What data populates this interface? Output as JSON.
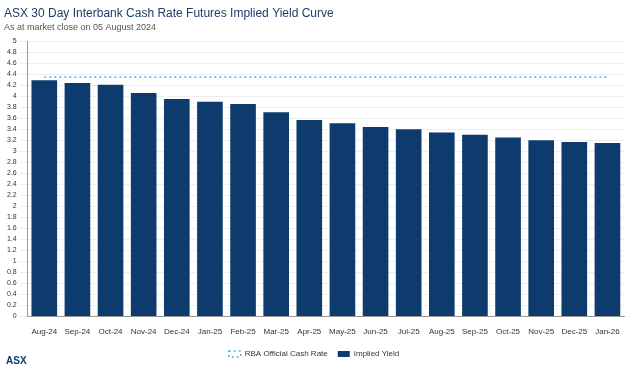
{
  "chart_data": {
    "type": "bar",
    "title": "ASX 30 Day Interbank Cash Rate Futures Implied Yield Curve",
    "subtitle": "As at market close on 05 August 2024",
    "annotations": [
      "ASX"
    ],
    "categories": [
      "Aug-24",
      "Sep-24",
      "Oct-24",
      "Nov-24",
      "Dec-24",
      "Jan-25",
      "Feb-25",
      "Mar-25",
      "Apr-25",
      "May-25",
      "Jun-25",
      "Jul-25",
      "Aug-25",
      "Sep-25",
      "Oct-25",
      "Nov-25",
      "Dec-25",
      "Jan-26"
    ],
    "series": [
      {
        "name": "Implied Yield",
        "type": "bar",
        "color": "#0d3b6e",
        "values": [
          4.29,
          4.24,
          4.21,
          4.06,
          3.95,
          3.9,
          3.86,
          3.71,
          3.57,
          3.51,
          3.44,
          3.4,
          3.34,
          3.3,
          3.25,
          3.2,
          3.17,
          3.15
        ]
      },
      {
        "name": "RBA Official Cash Rate",
        "type": "line",
        "color": "#4fb3dc",
        "line_style": "dotted",
        "values": [
          4.35,
          4.35,
          4.35,
          4.35,
          4.35,
          4.35,
          4.35,
          4.35,
          4.35,
          4.35,
          4.35,
          4.35,
          4.35,
          4.35,
          4.35,
          4.35,
          4.35,
          4.35
        ]
      }
    ],
    "ylim": [
      0,
      5
    ],
    "yticks": [
      0,
      0.2,
      0.4,
      0.6,
      0.8,
      1,
      1.2,
      1.4,
      1.6,
      1.8,
      2,
      2.2,
      2.4,
      2.6,
      2.8,
      3,
      3.2,
      3.4,
      3.6,
      3.8,
      4,
      4.2,
      4.4,
      4.6,
      4.8,
      5
    ],
    "grid": true,
    "legend": "bottom"
  }
}
